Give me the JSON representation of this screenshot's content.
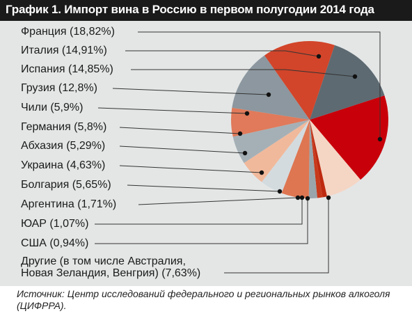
{
  "header": {
    "title": "График 1. Импорт вина в Россию в первом полугодии 2014 года"
  },
  "colors": {
    "title_bg": "#1a1a1a",
    "panel_bg": "#e4e6e6",
    "france": "#c8000a",
    "italy": "#d2452a",
    "spain": "#5d6a72",
    "georgia": "#8c979f",
    "chile": "#e07a5a",
    "germany": "#a5b0b6",
    "abkhazia": "#f1b99b",
    "ukraine": "#d3dbdf",
    "bulgaria": "#de7652",
    "argentina": "#9aa5ab",
    "sar": "#c83a1c",
    "usa": "#be2a10",
    "other": "#f5d6c5",
    "leader_line": "#333333"
  },
  "chart_data": {
    "type": "pie",
    "title": "График 1. Импорт вина в Россию в первом полугодии 2014 года",
    "series": [
      {
        "name": "Франция",
        "value": 18.82,
        "label": "Франция (18,82%)"
      },
      {
        "name": "Италия",
        "value": 14.91,
        "label": "Италия (14,91%)"
      },
      {
        "name": "Испания",
        "value": 14.85,
        "label": "Испания (14,85%)"
      },
      {
        "name": "Грузия",
        "value": 12.8,
        "label": "Грузия (12,8%)"
      },
      {
        "name": "Чили",
        "value": 5.9,
        "label": "Чили (5,9%)"
      },
      {
        "name": "Германия",
        "value": 5.8,
        "label": "Германия (5,8%)"
      },
      {
        "name": "Абхазия",
        "value": 5.29,
        "label": "Абхазия (5,29%)"
      },
      {
        "name": "Украина",
        "value": 4.63,
        "label": "Украина (4,63%)"
      },
      {
        "name": "Болгария",
        "value": 5.65,
        "label": "Болгария (5,65%)"
      },
      {
        "name": "Аргентина",
        "value": 1.71,
        "label": "Аргентина (1,71%)"
      },
      {
        "name": "ЮАР",
        "value": 1.07,
        "label": "ЮАР (1,07%)"
      },
      {
        "name": "США",
        "value": 0.94,
        "label": "США (0,94%)"
      },
      {
        "name": "Другие (в том числе Австралия, Новая Зеландия, Венгрия)",
        "value": 7.63,
        "label": "Другие (в том числе Австралия,",
        "label2": "Новая Зеландия, Венгрия) (7,63%)"
      }
    ]
  },
  "footer": {
    "source": "Источник: Центр исследований федерального и региональных рынков алкоголя (ЦИФРРА)."
  }
}
